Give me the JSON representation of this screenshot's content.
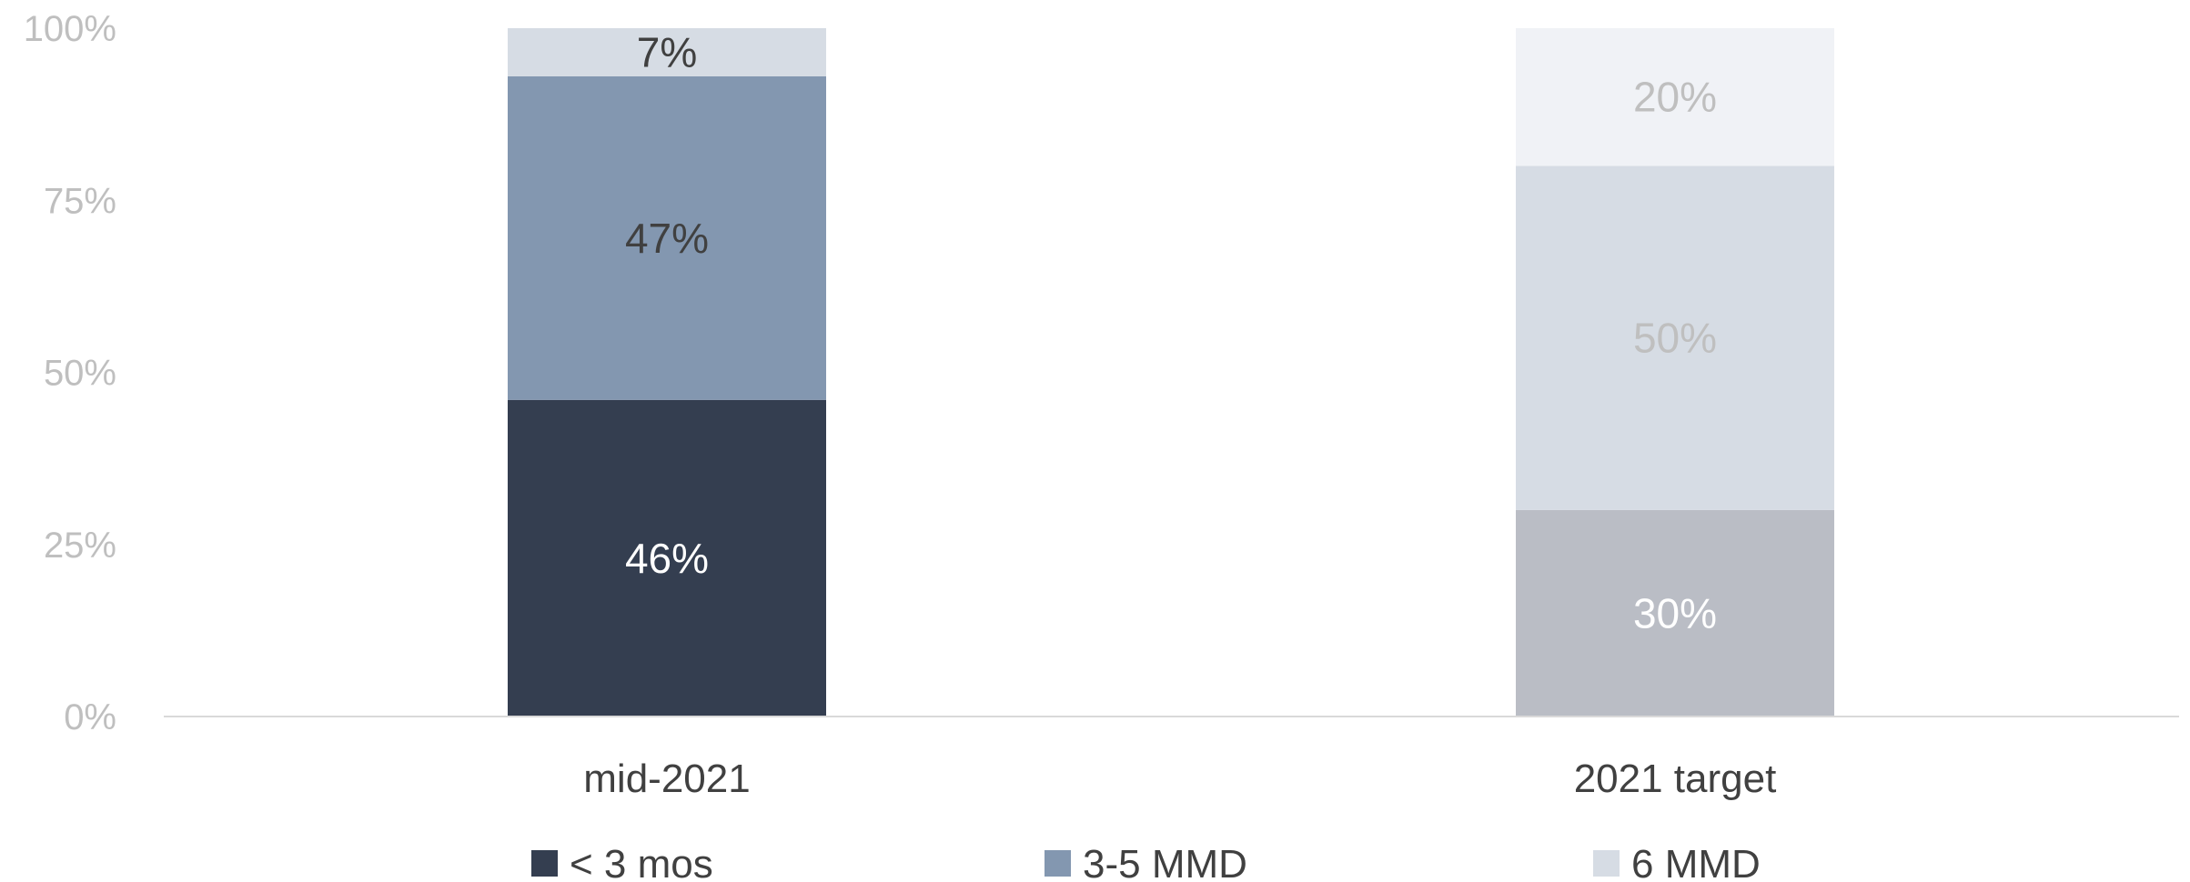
{
  "chart_data": {
    "type": "bar",
    "stacked": true,
    "categories": [
      "mid-2021",
      "2021 target"
    ],
    "series": [
      {
        "name": "< 3 mos",
        "values": [
          46,
          30
        ],
        "labels": [
          "46%",
          "30%"
        ]
      },
      {
        "name": "3-5 MMD",
        "values": [
          47,
          50
        ],
        "labels": [
          "47%",
          "50%"
        ]
      },
      {
        "name": "6 MMD",
        "values": [
          7,
          20
        ],
        "labels": [
          "7%",
          "20%"
        ]
      }
    ],
    "ylim": [
      0,
      100
    ],
    "yticks": [
      0,
      25,
      50,
      75,
      100
    ],
    "ytick_labels": [
      "0%",
      "25%",
      "50%",
      "75%",
      "100%"
    ],
    "colors": [
      [
        "#343e50",
        "#8397b0",
        "#d6dce4"
      ],
      [
        "#babdc5",
        "#d6dce4",
        "#f0f2f6"
      ]
    ],
    "label_colors": [
      [
        "#ffffff",
        "#404040",
        "#404040"
      ],
      [
        "#ffffff",
        "#bfbfbf",
        "#bfbfbf"
      ]
    ],
    "legend": {
      "position": "bottom",
      "colors": [
        "#343e50",
        "#8397b0",
        "#d6dce4"
      ]
    },
    "grid": false
  }
}
